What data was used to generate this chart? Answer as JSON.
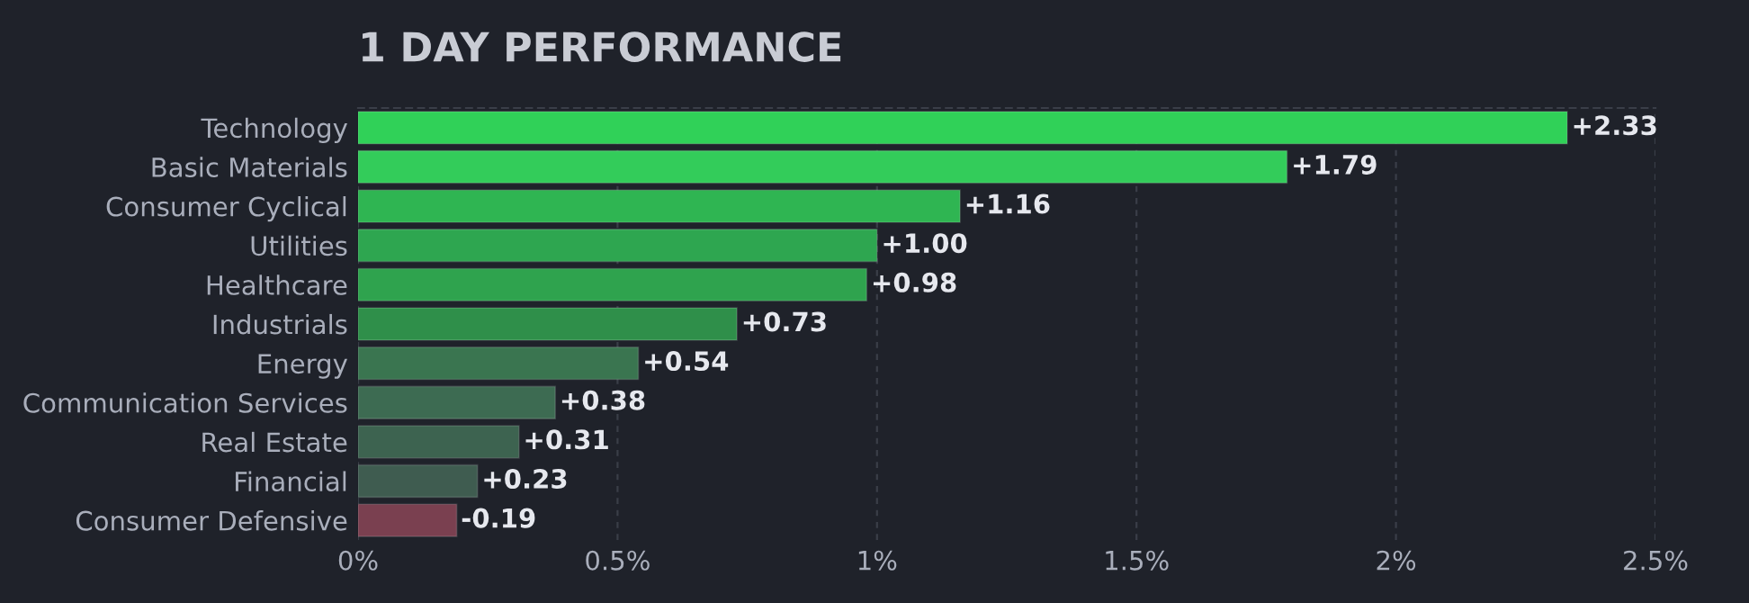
{
  "chart_data": {
    "type": "bar",
    "orientation": "horizontal",
    "title": "1 DAY PERFORMANCE",
    "categories": [
      "Technology",
      "Basic Materials",
      "Consumer Cyclical",
      "Utilities",
      "Healthcare",
      "Industrials",
      "Energy",
      "Communication Services",
      "Real Estate",
      "Financial",
      "Consumer Defensive"
    ],
    "values": [
      2.33,
      1.79,
      1.16,
      1.0,
      0.98,
      0.73,
      0.54,
      0.38,
      0.31,
      0.23,
      -0.19
    ],
    "base": [
      0,
      0,
      0,
      0,
      0,
      0,
      0,
      0,
      0,
      0,
      0.19
    ],
    "colors": [
      "#30d158",
      "#33cc5a",
      "#2fb552",
      "#2ea650",
      "#2fa34e",
      "#2f8f4a",
      "#3a7550",
      "#3d6b52",
      "#3d6350",
      "#3f5c50",
      "#7a4050"
    ],
    "value_labels": [
      "+2.33",
      "+1.79",
      "+1.16",
      "+1.00",
      "+0.98",
      "+0.73",
      "+0.54",
      "+0.38",
      "+0.31",
      "+0.23",
      "-0.19"
    ],
    "xlim": [
      0,
      2.5
    ],
    "xticks": [
      {
        "value": 0,
        "label": "0%"
      },
      {
        "value": 0.5,
        "label": "0.5%"
      },
      {
        "value": 1,
        "label": "1%"
      },
      {
        "value": 1.5,
        "label": "1.5%"
      },
      {
        "value": 2,
        "label": "2%"
      },
      {
        "value": 2.5,
        "label": "2.5%"
      }
    ],
    "grid": "x"
  }
}
